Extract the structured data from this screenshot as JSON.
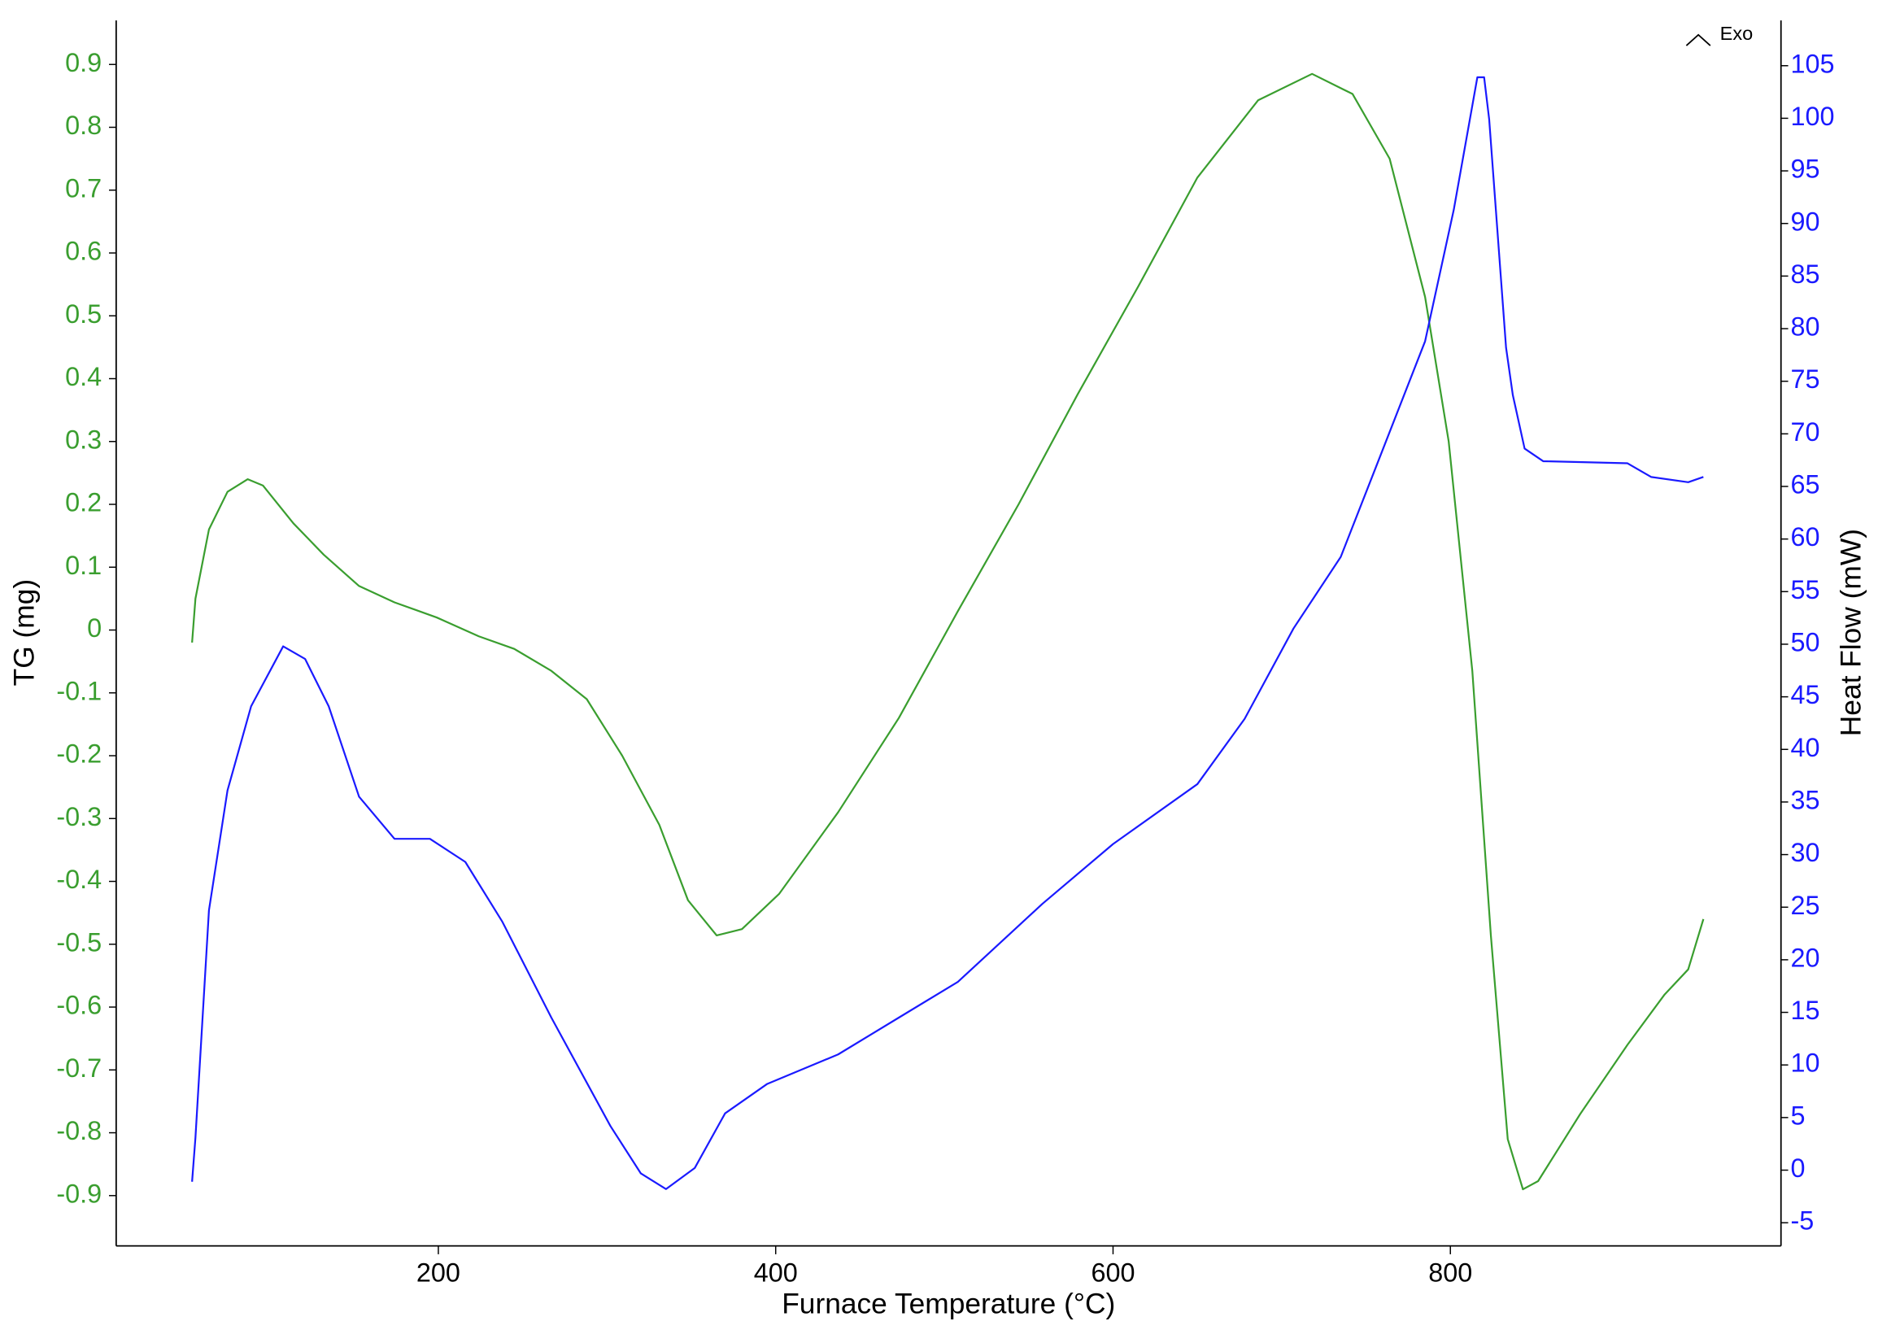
{
  "chart_data": {
    "type": "line",
    "x_label": "Furnace Temperature (°C)",
    "y_label": "TG (mg)",
    "y2_label": "Heat Flow (mW)",
    "annotation": "Exo",
    "xlim": [
      9,
      996
    ],
    "xticks": [
      200,
      400,
      600,
      800
    ],
    "ylim": [
      -0.98,
      0.97
    ],
    "yticks": [
      -0.9,
      -0.8,
      -0.7,
      -0.6,
      -0.5,
      -0.4,
      -0.3,
      -0.2,
      -0.1,
      0,
      0.1,
      0.2,
      0.3,
      0.4,
      0.5,
      0.6,
      0.7,
      0.8,
      0.9
    ],
    "y2lim": [
      -7.2,
      109.3
    ],
    "y2ticks": [
      -5,
      0,
      5,
      10,
      15,
      20,
      25,
      30,
      35,
      40,
      45,
      50,
      55,
      60,
      65,
      70,
      75,
      80,
      85,
      90,
      95,
      100,
      105
    ],
    "series": [
      {
        "name": "TG",
        "color": "#3a9e2f",
        "axis": "y",
        "x": [
          54,
          56,
          64,
          75,
          87,
          96,
          114,
          132,
          153,
          174,
          199,
          224,
          245,
          267,
          288,
          309,
          331,
          348,
          365,
          380,
          402,
          437,
          473,
          508,
          544,
          579,
          615,
          650,
          686,
          718,
          742,
          764,
          785,
          799,
          813,
          824,
          834,
          843,
          852,
          877,
          905,
          927,
          941,
          950
        ],
        "values": [
          -0.02,
          0.05,
          0.16,
          0.22,
          0.24,
          0.23,
          0.17,
          0.12,
          0.07,
          0.044,
          0.02,
          -0.01,
          -0.03,
          -0.065,
          -0.11,
          -0.2,
          -0.31,
          -0.43,
          -0.486,
          -0.476,
          -0.42,
          -0.29,
          -0.14,
          0.03,
          0.2,
          0.375,
          0.547,
          0.72,
          0.843,
          0.885,
          0.853,
          0.75,
          0.53,
          0.3,
          -0.065,
          -0.486,
          -0.81,
          -0.89,
          -0.877,
          -0.77,
          -0.66,
          -0.58,
          -0.54,
          -0.46
        ]
      },
      {
        "name": "Heat Flow",
        "color": "#1a1aff",
        "axis": "y2",
        "x": [
          54,
          56,
          64,
          75,
          89,
          108,
          121,
          135,
          153,
          174,
          195,
          216,
          238,
          267,
          302,
          320,
          335,
          352,
          370,
          395,
          437,
          473,
          508,
          558,
          600,
          650,
          678,
          707,
          735,
          756,
          785,
          802,
          816,
          820,
          823,
          833,
          837,
          844,
          855,
          905,
          919,
          941,
          950
        ],
        "values": [
          -1.1,
          3.1,
          24.7,
          36.1,
          44.1,
          49.8,
          48.6,
          44.1,
          35.5,
          31.5,
          31.5,
          29.3,
          23.6,
          14.5,
          4.2,
          -0.3,
          -1.8,
          0.2,
          5.4,
          8.2,
          11,
          14.5,
          17.9,
          25.3,
          31,
          36.7,
          42.9,
          51.5,
          58.3,
          66.9,
          78.8,
          91.3,
          103.9,
          103.9,
          99.9,
          78.2,
          73.7,
          68.6,
          67.4,
          67.2,
          65.9,
          65.4,
          65.9
        ]
      }
    ]
  }
}
